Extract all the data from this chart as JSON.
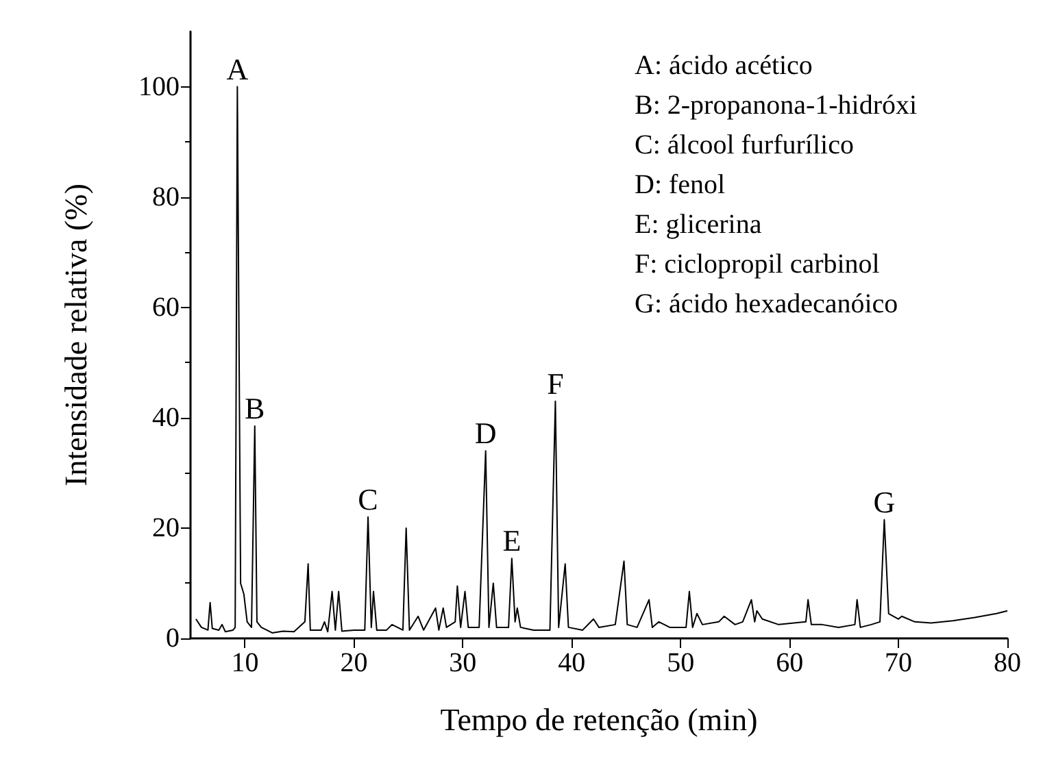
{
  "chart_data": {
    "type": "line",
    "xlabel": "Tempo de retenção (min)",
    "ylabel": "Intensidade relativa (%)",
    "xlim": [
      5,
      80
    ],
    "xticks": [
      10,
      20,
      30,
      40,
      50,
      60,
      70,
      80
    ],
    "ylim": [
      0,
      110
    ],
    "yticks": [
      0,
      20,
      40,
      60,
      80,
      100
    ],
    "marker": "none",
    "line_style": "solid",
    "series": [
      {
        "color": "#000000",
        "x": [
          5.5,
          6.0,
          6.6,
          6.8,
          7.0,
          7.6,
          7.9,
          8.2,
          8.9,
          9.1,
          9.3,
          9.6,
          9.9,
          10.2,
          10.6,
          10.9,
          11.1,
          11.5,
          12.5,
          13.5,
          14.5,
          15.5,
          15.8,
          16.0,
          17.0,
          17.3,
          17.6,
          18.0,
          18.3,
          18.6,
          18.9,
          20.0,
          21.0,
          21.3,
          21.6,
          21.8,
          22.1,
          23.0,
          23.5,
          24.5,
          24.8,
          25.1,
          25.9,
          26.4,
          27.5,
          27.8,
          28.2,
          28.5,
          29.3,
          29.5,
          29.8,
          30.2,
          30.5,
          31.5,
          32.1,
          32.4,
          32.8,
          33.1,
          34.2,
          34.5,
          34.8,
          35.0,
          35.3,
          36.5,
          38.0,
          38.5,
          38.8,
          39.4,
          39.7,
          41.0,
          42.0,
          42.5,
          44.0,
          44.8,
          45.1,
          46.0,
          47.1,
          47.4,
          48.0,
          49.0,
          50.5,
          50.8,
          51.1,
          51.5,
          52.0,
          53.5,
          54.0,
          55.0,
          55.7,
          56.5,
          56.8,
          57.0,
          57.5,
          59.0,
          61.5,
          61.7,
          62.0,
          63.0,
          64.5,
          66.0,
          66.2,
          66.5,
          67.5,
          68.3,
          68.7,
          69.1,
          70.0,
          70.3,
          71.5,
          73.0,
          75.0,
          77.0,
          79.0,
          80.0
        ],
        "values": [
          3.5,
          2,
          1.5,
          6.5,
          1.8,
          1.5,
          2.5,
          1.2,
          1.5,
          2,
          100,
          10,
          8,
          3,
          2,
          38.5,
          3,
          2,
          1,
          1.3,
          1.2,
          3,
          13.5,
          1.5,
          1.5,
          3,
          1.2,
          8.5,
          1.5,
          8.5,
          1.3,
          1.5,
          1.5,
          22,
          2,
          8.5,
          1.5,
          1.5,
          2.5,
          1.5,
          20,
          1.5,
          4,
          1.5,
          5.5,
          1.5,
          5.5,
          2,
          3,
          9.5,
          2,
          8.5,
          2,
          2,
          34,
          2,
          10,
          2,
          2,
          14.5,
          3,
          5.5,
          2,
          1.5,
          1.5,
          43,
          2,
          13.5,
          2,
          1.5,
          3.5,
          2,
          2.5,
          14,
          2.5,
          2,
          7,
          2,
          3,
          2,
          2,
          8.5,
          2,
          4.5,
          2.5,
          3,
          4,
          2.5,
          3,
          7,
          3,
          5,
          3.5,
          2.5,
          3,
          7,
          2.5,
          2.5,
          2,
          2.5,
          7,
          2,
          2.5,
          3,
          21.5,
          4.5,
          3.5,
          4,
          3,
          2.8,
          3.2,
          3.8,
          4.5,
          5
        ]
      }
    ],
    "annotations": [
      {
        "text": "A",
        "x": 9.3,
        "y": 100
      },
      {
        "text": "B",
        "x": 10.9,
        "y": 38.5
      },
      {
        "text": "C",
        "x": 21.3,
        "y": 22
      },
      {
        "text": "D",
        "x": 32.1,
        "y": 34
      },
      {
        "text": "E",
        "x": 34.5,
        "y": 14.5
      },
      {
        "text": "F",
        "x": 38.5,
        "y": 43
      },
      {
        "text": "G",
        "x": 68.7,
        "y": 21.5
      },
      "A: ácido acético",
      "B: 2-propanona-1-hidróxi",
      "C: álcool furfurílico",
      "D: fenol",
      "E: glicerina",
      "F: ciclopropil carbinol",
      "G: ácido hexadecanóico"
    ]
  }
}
